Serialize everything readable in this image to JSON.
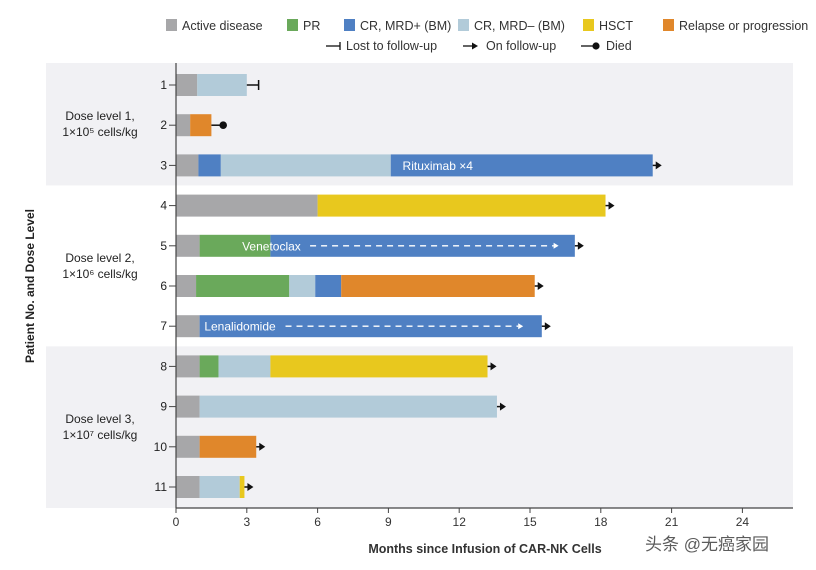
{
  "chart_data": {
    "type": "bar",
    "subtype": "swimmer",
    "title": "",
    "xlabel": "Months since Infusion of CAR-NK Cells",
    "ylabel": "Patient No. and Dose Level",
    "xlim": [
      0,
      26
    ],
    "xticks": [
      "0",
      "3",
      "6",
      "9",
      "12",
      "15",
      "18",
      "21",
      "24"
    ],
    "xtick_values": [
      0,
      3,
      6,
      9,
      12,
      15,
      18,
      21,
      24
    ],
    "grid": false,
    "legend_position": "top",
    "categories": {
      "active": {
        "label": "Active disease",
        "color": "#a7a7a9"
      },
      "pr": {
        "label": "PR",
        "color": "#6aa95b"
      },
      "mrdpos": {
        "label": "CR, MRD+ (BM)",
        "color": "#4f80c3"
      },
      "mrdneg": {
        "label": "CR, MRD– (BM)",
        "color": "#b2cbd9"
      },
      "hsct": {
        "label": "HSCT",
        "color": "#e8c81e"
      },
      "relapse": {
        "label": "Relapse or progression",
        "color": "#e0872b"
      }
    },
    "endpoints": {
      "lost": "Lost to follow-up",
      "on": "On follow-up",
      "died": "Died"
    },
    "dose_levels": [
      {
        "label1": "Dose level 1,",
        "label2": "1×10⁵ cells/kg",
        "patients": [
          1,
          2,
          3
        ],
        "band": "#f1f1f4"
      },
      {
        "label1": "Dose level 2,",
        "label2": "1×10⁶ cells/kg",
        "patients": [
          4,
          5,
          6,
          7
        ],
        "band": "#ffffff"
      },
      {
        "label1": "Dose level 3,",
        "label2": "1×10⁷ cells/kg",
        "patients": [
          8,
          9,
          10,
          11
        ],
        "band": "#f1f1f4"
      }
    ],
    "patients": [
      {
        "id": "1",
        "segments": [
          [
            "active",
            0,
            0.9
          ],
          [
            "mrdneg",
            0.9,
            3.0
          ]
        ],
        "end": "lost",
        "end_at": 3.5
      },
      {
        "id": "2",
        "segments": [
          [
            "active",
            0,
            0.6
          ],
          [
            "relapse",
            0.6,
            1.5
          ]
        ],
        "end": "died",
        "end_at": 2.0
      },
      {
        "id": "3",
        "segments": [
          [
            "active",
            0,
            0.95
          ],
          [
            "mrdpos",
            0.95,
            1.9
          ],
          [
            "mrdneg",
            1.9,
            9.1
          ],
          [
            "mrdpos",
            9.1,
            20.2
          ]
        ],
        "end": "on",
        "annotation": {
          "text": "Rituximab ×4",
          "from": 9.6,
          "dashed": false
        }
      },
      {
        "id": "4",
        "segments": [
          [
            "active",
            0,
            6.0
          ],
          [
            "hsct",
            6.0,
            18.2
          ]
        ],
        "end": "on"
      },
      {
        "id": "5",
        "segments": [
          [
            "active",
            0,
            1.0
          ],
          [
            "pr",
            1.0,
            4.0
          ],
          [
            "mrdpos",
            4.0,
            16.9
          ]
        ],
        "end": "on",
        "annotation": {
          "text": "Venetoclax",
          "from": 2.8,
          "dashed": true,
          "to": 16.0
        }
      },
      {
        "id": "6",
        "segments": [
          [
            "active",
            0,
            0.85
          ],
          [
            "pr",
            0.85,
            4.8
          ],
          [
            "mrdneg",
            4.8,
            5.9
          ],
          [
            "mrdpos",
            5.9,
            7.0
          ],
          [
            "relapse",
            7.0,
            15.2
          ]
        ],
        "end": "on"
      },
      {
        "id": "7",
        "segments": [
          [
            "active",
            0,
            1.0
          ],
          [
            "mrdpos",
            1.0,
            15.5
          ]
        ],
        "end": "on",
        "annotation": {
          "text": "Lenalidomide",
          "from": 1.2,
          "dashed": true,
          "to": 14.5
        }
      },
      {
        "id": "8",
        "segments": [
          [
            "active",
            0,
            1.0
          ],
          [
            "pr",
            1.0,
            1.8
          ],
          [
            "mrdneg",
            1.8,
            4.0
          ],
          [
            "hsct",
            4.0,
            13.2
          ]
        ],
        "end": "on"
      },
      {
        "id": "9",
        "segments": [
          [
            "active",
            0,
            1.0
          ],
          [
            "mrdneg",
            1.0,
            13.6
          ]
        ],
        "end": "on"
      },
      {
        "id": "10",
        "segments": [
          [
            "active",
            0,
            1.0
          ],
          [
            "relapse",
            1.0,
            3.4
          ]
        ],
        "end": "on"
      },
      {
        "id": "11",
        "segments": [
          [
            "active",
            0,
            1.0
          ],
          [
            "mrdneg",
            1.0,
            2.7
          ],
          [
            "hsct",
            2.7,
            2.9
          ]
        ],
        "end": "on"
      }
    ]
  },
  "watermark": "头条 @无癌家园"
}
